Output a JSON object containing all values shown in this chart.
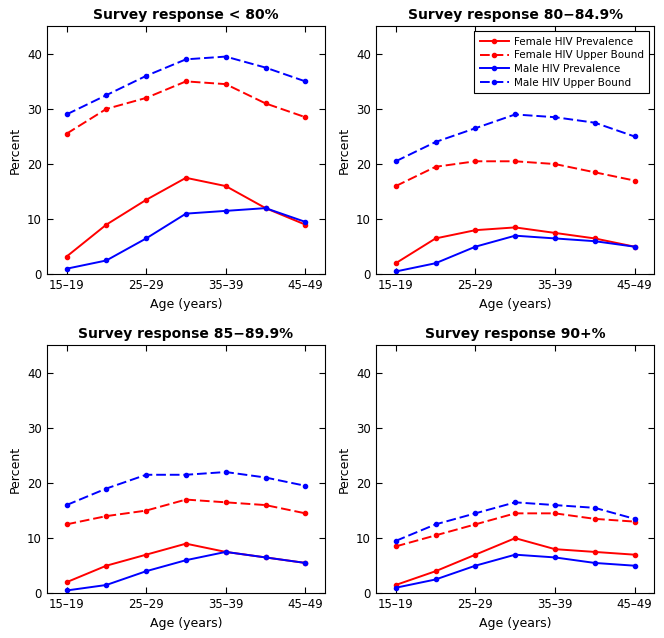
{
  "x_positions": [
    1,
    2,
    3,
    4,
    5,
    6,
    7
  ],
  "x_tick_positions": [
    1,
    3,
    5,
    7
  ],
  "x_tick_labels": [
    "15–19",
    "25–29",
    "35–39",
    "45–49"
  ],
  "panels": [
    {
      "title": "Survey response < 80%",
      "female_prev": [
        3.2,
        9.0,
        13.5,
        17.5,
        16.0,
        12.0,
        9.0
      ],
      "female_upper": [
        25.5,
        30.0,
        32.0,
        35.0,
        34.5,
        31.0,
        28.5
      ],
      "male_prev": [
        1.0,
        2.5,
        6.5,
        11.0,
        11.5,
        12.0,
        9.5
      ],
      "male_upper": [
        29.0,
        32.5,
        36.0,
        39.0,
        39.5,
        37.5,
        35.0
      ]
    },
    {
      "title": "Survey response 80−84.9%",
      "female_prev": [
        2.0,
        6.5,
        8.0,
        8.5,
        7.5,
        6.5,
        5.0
      ],
      "female_upper": [
        16.0,
        19.5,
        20.5,
        20.5,
        20.0,
        18.5,
        17.0
      ],
      "male_prev": [
        0.5,
        2.0,
        5.0,
        7.0,
        6.5,
        6.0,
        5.0
      ],
      "male_upper": [
        20.5,
        24.0,
        26.5,
        29.0,
        28.5,
        27.5,
        25.0
      ]
    },
    {
      "title": "Survey response 85−89.9%",
      "female_prev": [
        2.0,
        5.0,
        7.0,
        9.0,
        7.5,
        6.5,
        5.5
      ],
      "female_upper": [
        12.5,
        14.0,
        15.0,
        17.0,
        16.5,
        16.0,
        14.5
      ],
      "male_prev": [
        0.5,
        1.5,
        4.0,
        6.0,
        7.5,
        6.5,
        5.5
      ],
      "male_upper": [
        16.0,
        19.0,
        21.5,
        21.5,
        22.0,
        21.0,
        19.5
      ]
    },
    {
      "title": "Survey response 90+%",
      "female_prev": [
        1.5,
        4.0,
        7.0,
        10.0,
        8.0,
        7.5,
        7.0
      ],
      "female_upper": [
        8.5,
        10.5,
        12.5,
        14.5,
        14.5,
        13.5,
        13.0
      ],
      "male_prev": [
        1.0,
        2.5,
        5.0,
        7.0,
        6.5,
        5.5,
        5.0
      ],
      "male_upper": [
        9.5,
        12.5,
        14.5,
        16.5,
        16.0,
        15.5,
        13.5
      ]
    }
  ],
  "female_color": "#FF0000",
  "male_color": "#0000FF",
  "ylim": [
    0,
    45
  ],
  "yticks": [
    0,
    10,
    20,
    30,
    40
  ],
  "legend_entries": [
    {
      "label": "Female HIV Prevalence",
      "color": "#FF0000",
      "linestyle": "-"
    },
    {
      "label": "Female HIV Upper Bound",
      "color": "#FF0000",
      "linestyle": "--"
    },
    {
      "label": "Male HIV Prevalence",
      "color": "#0000FF",
      "linestyle": "-"
    },
    {
      "label": "Male HIV Upper Bound",
      "color": "#0000FF",
      "linestyle": "--"
    }
  ],
  "figsize": [
    6.64,
    6.38
  ],
  "dpi": 100
}
